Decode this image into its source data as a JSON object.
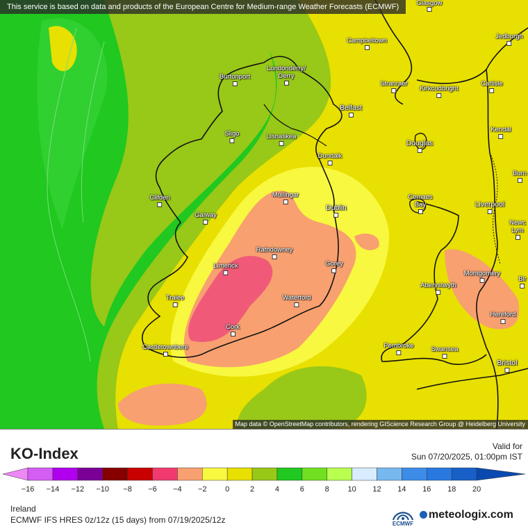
{
  "attribution_top": "This service is based on data and products of the European Centre for Medium-range Weather Forecasts (ECMWF)",
  "attribution_bottom": "Map data © OpenStreetMap contributors, rendering GIScience Research Group @ Heidelberg University",
  "cities": [
    {
      "name": "Glasgow"
    },
    {
      "name": "Campbeltown"
    },
    {
      "name": "Jedburgh"
    },
    {
      "name": "Burtonport"
    },
    {
      "name": "Londonderry/ Derry"
    },
    {
      "name": "Stranraer"
    },
    {
      "name": "Kirkcudbright"
    },
    {
      "name": "Carlisle"
    },
    {
      "name": "Belfast"
    },
    {
      "name": "Sligo"
    },
    {
      "name": "Lisnaskea"
    },
    {
      "name": "Kendal"
    },
    {
      "name": "Douglas"
    },
    {
      "name": "Dundalk"
    },
    {
      "name": "Burn"
    },
    {
      "name": "Clifden"
    },
    {
      "name": "Mullingar"
    },
    {
      "name": "Cemaes Bay"
    },
    {
      "name": "Liverpool"
    },
    {
      "name": "Galway"
    },
    {
      "name": "Dublin"
    },
    {
      "name": "Newc Lym"
    },
    {
      "name": "Rathdowney"
    },
    {
      "name": "Limerick"
    },
    {
      "name": "Gorey"
    },
    {
      "name": "Montgomery"
    },
    {
      "name": "Bir"
    },
    {
      "name": "Aberystwyth"
    },
    {
      "name": "Tralee"
    },
    {
      "name": "Waterford"
    },
    {
      "name": "Hereford"
    },
    {
      "name": "Cork"
    },
    {
      "name": "Castletownbere"
    },
    {
      "name": "Pembroke"
    },
    {
      "name": "Swansea"
    },
    {
      "name": "Bristol"
    }
  ],
  "legend": {
    "title": "KO-Index",
    "valid_label": "Valid for",
    "valid_time": "Sun 07/20/2025, 01:00pm IST",
    "region": "Ireland",
    "model": "ECMWF IFS HRES 0z/12z (15 days) from  07/19/2025/12z",
    "ecmwf_label": "ECMWF",
    "brand": "meteologix.com",
    "ticks": [
      "−16",
      "−14",
      "−12",
      "−10",
      "−8",
      "−6",
      "−4",
      "−2",
      "0",
      "2",
      "4",
      "6",
      "8",
      "10",
      "12",
      "14",
      "16",
      "18",
      "20"
    ],
    "colors": [
      "#ee88f4",
      "#d45df4",
      "#b000ee",
      "#7a0096",
      "#860000",
      "#c80000",
      "#f03a70",
      "#f8a070",
      "#f8f840",
      "#e8e000",
      "#98c818",
      "#20c820",
      "#70e020",
      "#b8ff50",
      "#d8ecff",
      "#78b8f0",
      "#3c8ce8",
      "#2878e0",
      "#1860c8",
      "#0a4ab0"
    ]
  }
}
